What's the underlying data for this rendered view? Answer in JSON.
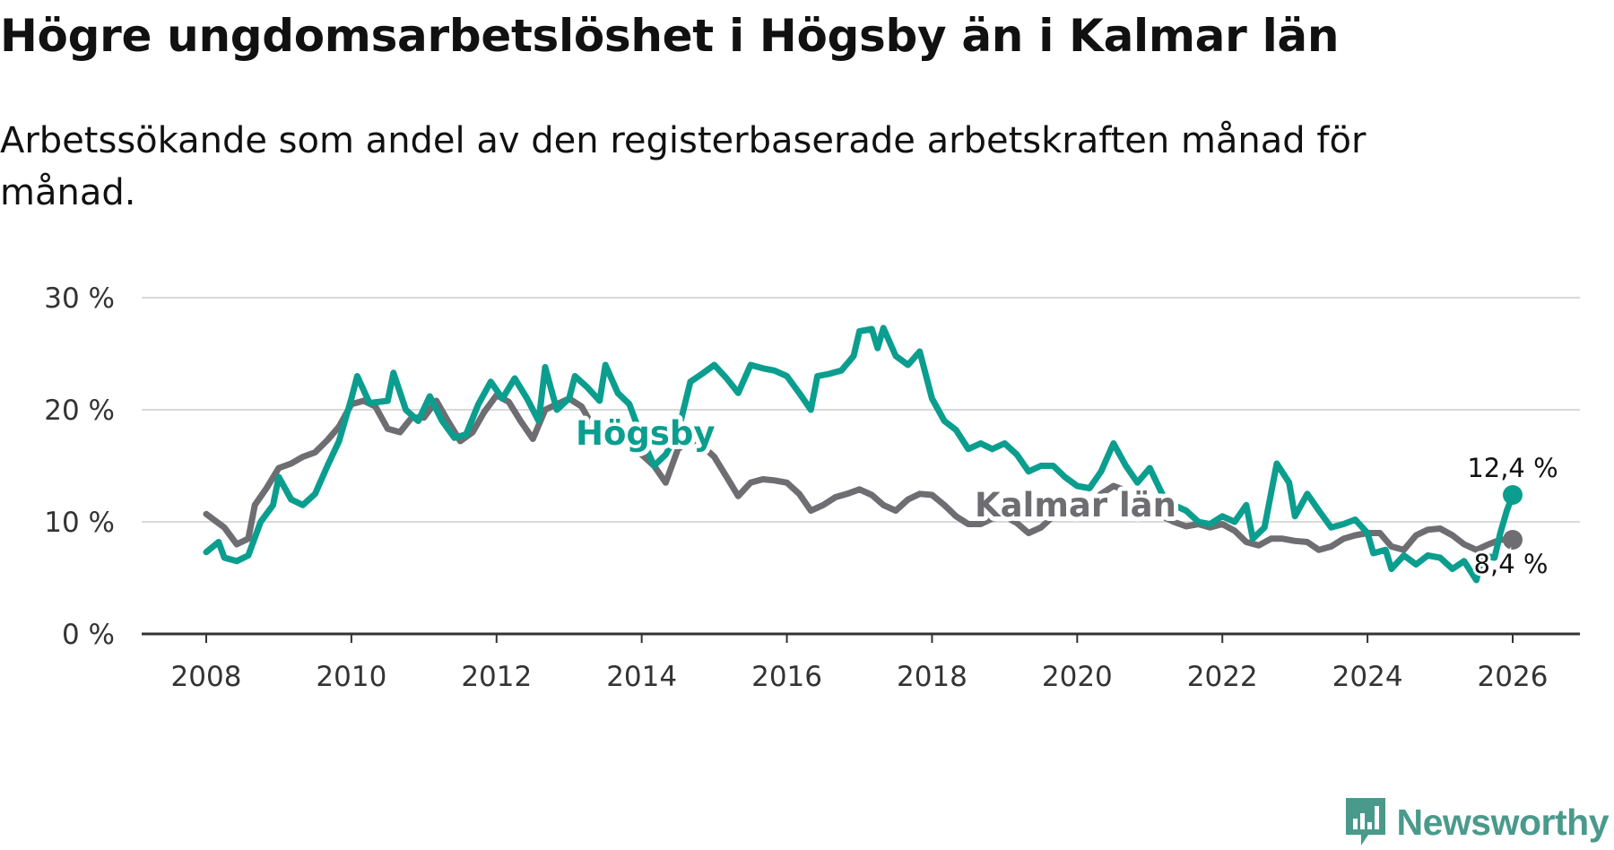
{
  "chart_data": {
    "type": "line",
    "title": "Högre ungdomsarbetslöshet i Högsby än i Kalmar län",
    "subtitle": "Arbetssökande som andel av den registerbaserade arbetskraften månad för månad.",
    "xlabel": "",
    "ylabel": "",
    "xlim": [
      2008,
      2026
    ],
    "ylim": [
      0,
      30
    ],
    "x_ticks": [
      "2008",
      "2010",
      "2012",
      "2014",
      "2016",
      "2018",
      "2020",
      "2022",
      "2024",
      "2026"
    ],
    "y_ticks": [
      "0 %",
      "10 %",
      "20 %",
      "30 %"
    ],
    "grid": true,
    "series": [
      {
        "name": "Kalmar län",
        "label": "Kalmar län",
        "color": "#6e6d72",
        "end_label": "8,4 %",
        "points": [
          [
            2008.0,
            10.7
          ],
          [
            2008.25,
            9.5
          ],
          [
            2008.42,
            8.0
          ],
          [
            2008.58,
            8.5
          ],
          [
            2008.67,
            11.5
          ],
          [
            2008.83,
            13.0
          ],
          [
            2009.0,
            14.8
          ],
          [
            2009.17,
            15.2
          ],
          [
            2009.33,
            15.8
          ],
          [
            2009.5,
            16.2
          ],
          [
            2009.67,
            17.3
          ],
          [
            2009.83,
            18.5
          ],
          [
            2010.0,
            20.5
          ],
          [
            2010.17,
            20.8
          ],
          [
            2010.33,
            20.3
          ],
          [
            2010.5,
            18.3
          ],
          [
            2010.67,
            18.0
          ],
          [
            2010.83,
            19.3
          ],
          [
            2011.0,
            19.3
          ],
          [
            2011.17,
            20.8
          ],
          [
            2011.33,
            19.0
          ],
          [
            2011.5,
            17.2
          ],
          [
            2011.67,
            18.0
          ],
          [
            2011.83,
            19.8
          ],
          [
            2012.0,
            21.3
          ],
          [
            2012.17,
            20.7
          ],
          [
            2012.33,
            19.0
          ],
          [
            2012.5,
            17.4
          ],
          [
            2012.67,
            20.0
          ],
          [
            2012.83,
            20.5
          ],
          [
            2013.0,
            21.0
          ],
          [
            2013.17,
            20.3
          ],
          [
            2013.33,
            18.5
          ],
          [
            2013.5,
            17.0
          ],
          [
            2013.67,
            17.8
          ],
          [
            2013.83,
            17.2
          ],
          [
            2014.0,
            16.0
          ],
          [
            2014.17,
            15.0
          ],
          [
            2014.33,
            13.5
          ],
          [
            2014.5,
            16.5
          ],
          [
            2014.67,
            17.2
          ],
          [
            2014.83,
            16.8
          ],
          [
            2015.0,
            15.8
          ],
          [
            2015.17,
            14.0
          ],
          [
            2015.33,
            12.3
          ],
          [
            2015.5,
            13.5
          ],
          [
            2015.67,
            13.8
          ],
          [
            2015.83,
            13.7
          ],
          [
            2016.0,
            13.5
          ],
          [
            2016.17,
            12.5
          ],
          [
            2016.33,
            11.0
          ],
          [
            2016.5,
            11.5
          ],
          [
            2016.67,
            12.2
          ],
          [
            2016.83,
            12.5
          ],
          [
            2017.0,
            12.9
          ],
          [
            2017.17,
            12.4
          ],
          [
            2017.33,
            11.5
          ],
          [
            2017.5,
            11.0
          ],
          [
            2017.67,
            12.0
          ],
          [
            2017.83,
            12.5
          ],
          [
            2018.0,
            12.4
          ],
          [
            2018.17,
            11.5
          ],
          [
            2018.33,
            10.5
          ],
          [
            2018.5,
            9.8
          ],
          [
            2018.67,
            9.8
          ],
          [
            2018.83,
            10.3
          ],
          [
            2019.0,
            10.5
          ],
          [
            2019.17,
            9.9
          ],
          [
            2019.33,
            9.0
          ],
          [
            2019.5,
            9.5
          ],
          [
            2019.67,
            10.5
          ],
          [
            2019.83,
            10.5
          ],
          [
            2020.0,
            10.9
          ],
          [
            2020.17,
            11.5
          ],
          [
            2020.33,
            12.5
          ],
          [
            2020.5,
            13.2
          ],
          [
            2020.67,
            12.8
          ],
          [
            2020.83,
            12.0
          ],
          [
            2021.0,
            11.2
          ],
          [
            2021.17,
            10.5
          ],
          [
            2021.33,
            10.0
          ],
          [
            2021.5,
            9.6
          ],
          [
            2021.67,
            9.8
          ],
          [
            2021.83,
            9.5
          ],
          [
            2022.0,
            9.8
          ],
          [
            2022.17,
            9.2
          ],
          [
            2022.33,
            8.2
          ],
          [
            2022.5,
            7.9
          ],
          [
            2022.67,
            8.5
          ],
          [
            2022.83,
            8.5
          ],
          [
            2023.0,
            8.3
          ],
          [
            2023.17,
            8.2
          ],
          [
            2023.33,
            7.5
          ],
          [
            2023.5,
            7.8
          ],
          [
            2023.67,
            8.5
          ],
          [
            2023.83,
            8.8
          ],
          [
            2024.0,
            9.0
          ],
          [
            2024.17,
            9.0
          ],
          [
            2024.33,
            7.8
          ],
          [
            2024.5,
            7.5
          ],
          [
            2024.67,
            8.8
          ],
          [
            2024.83,
            9.3
          ],
          [
            2025.0,
            9.4
          ],
          [
            2025.17,
            8.8
          ],
          [
            2025.33,
            8.0
          ],
          [
            2025.5,
            7.5
          ],
          [
            2025.67,
            8.0
          ],
          [
            2025.83,
            8.4
          ],
          [
            2026.0,
            8.4
          ]
        ]
      },
      {
        "name": "Högsby",
        "label": "Högsby",
        "color": "#0b9e8f",
        "end_label": "12,4 %",
        "points": [
          [
            2008.0,
            7.3
          ],
          [
            2008.17,
            8.2
          ],
          [
            2008.25,
            6.8
          ],
          [
            2008.42,
            6.5
          ],
          [
            2008.58,
            7.0
          ],
          [
            2008.75,
            10.0
          ],
          [
            2008.92,
            11.5
          ],
          [
            2009.0,
            14.0
          ],
          [
            2009.17,
            12.0
          ],
          [
            2009.33,
            11.5
          ],
          [
            2009.5,
            12.5
          ],
          [
            2009.67,
            15.0
          ],
          [
            2009.83,
            17.2
          ],
          [
            2010.0,
            21.0
          ],
          [
            2010.08,
            23.0
          ],
          [
            2010.25,
            20.6
          ],
          [
            2010.5,
            20.8
          ],
          [
            2010.58,
            23.3
          ],
          [
            2010.75,
            20.0
          ],
          [
            2010.92,
            19.0
          ],
          [
            2011.08,
            21.2
          ],
          [
            2011.25,
            19.0
          ],
          [
            2011.42,
            17.5
          ],
          [
            2011.58,
            17.8
          ],
          [
            2011.75,
            20.5
          ],
          [
            2011.92,
            22.5
          ],
          [
            2012.08,
            21.0
          ],
          [
            2012.25,
            22.8
          ],
          [
            2012.42,
            21.0
          ],
          [
            2012.58,
            19.0
          ],
          [
            2012.67,
            23.8
          ],
          [
            2012.83,
            20.0
          ],
          [
            2013.0,
            21.0
          ],
          [
            2013.08,
            23.0
          ],
          [
            2013.25,
            22.0
          ],
          [
            2013.42,
            20.8
          ],
          [
            2013.5,
            24.0
          ],
          [
            2013.67,
            21.5
          ],
          [
            2013.83,
            20.5
          ],
          [
            2014.0,
            17.5
          ],
          [
            2014.17,
            15.0
          ],
          [
            2014.33,
            16.0
          ],
          [
            2014.5,
            18.0
          ],
          [
            2014.67,
            22.5
          ],
          [
            2014.83,
            23.2
          ],
          [
            2015.0,
            24.0
          ],
          [
            2015.17,
            22.8
          ],
          [
            2015.33,
            21.5
          ],
          [
            2015.5,
            24.0
          ],
          [
            2015.67,
            23.7
          ],
          [
            2015.83,
            23.5
          ],
          [
            2016.0,
            23.0
          ],
          [
            2016.17,
            21.5
          ],
          [
            2016.33,
            20.0
          ],
          [
            2016.42,
            23.0
          ],
          [
            2016.58,
            23.2
          ],
          [
            2016.75,
            23.5
          ],
          [
            2016.92,
            24.8
          ],
          [
            2017.0,
            27.0
          ],
          [
            2017.17,
            27.2
          ],
          [
            2017.25,
            25.5
          ],
          [
            2017.33,
            27.3
          ],
          [
            2017.5,
            24.8
          ],
          [
            2017.67,
            24.0
          ],
          [
            2017.83,
            25.2
          ],
          [
            2018.0,
            21.0
          ],
          [
            2018.17,
            19.0
          ],
          [
            2018.33,
            18.2
          ],
          [
            2018.5,
            16.5
          ],
          [
            2018.67,
            17.0
          ],
          [
            2018.83,
            16.5
          ],
          [
            2019.0,
            17.0
          ],
          [
            2019.17,
            16.0
          ],
          [
            2019.33,
            14.5
          ],
          [
            2019.5,
            15.0
          ],
          [
            2019.67,
            15.0
          ],
          [
            2019.83,
            14.0
          ],
          [
            2020.0,
            13.2
          ],
          [
            2020.17,
            13.0
          ],
          [
            2020.33,
            14.5
          ],
          [
            2020.5,
            17.0
          ],
          [
            2020.67,
            15.0
          ],
          [
            2020.83,
            13.5
          ],
          [
            2021.0,
            14.8
          ],
          [
            2021.17,
            12.5
          ],
          [
            2021.33,
            11.5
          ],
          [
            2021.5,
            11.0
          ],
          [
            2021.67,
            10.0
          ],
          [
            2021.83,
            9.8
          ],
          [
            2022.0,
            10.5
          ],
          [
            2022.17,
            10.0
          ],
          [
            2022.33,
            11.5
          ],
          [
            2022.42,
            8.5
          ],
          [
            2022.58,
            9.5
          ],
          [
            2022.75,
            15.2
          ],
          [
            2022.92,
            13.5
          ],
          [
            2023.0,
            10.5
          ],
          [
            2023.17,
            12.5
          ],
          [
            2023.33,
            11.0
          ],
          [
            2023.5,
            9.5
          ],
          [
            2023.67,
            9.8
          ],
          [
            2023.83,
            10.2
          ],
          [
            2024.0,
            9.0
          ],
          [
            2024.08,
            7.2
          ],
          [
            2024.25,
            7.5
          ],
          [
            2024.33,
            5.8
          ],
          [
            2024.5,
            7.0
          ],
          [
            2024.67,
            6.2
          ],
          [
            2024.83,
            7.0
          ],
          [
            2025.0,
            6.8
          ],
          [
            2025.17,
            5.8
          ],
          [
            2025.33,
            6.5
          ],
          [
            2025.5,
            4.8
          ],
          [
            2025.58,
            7.0
          ],
          [
            2025.75,
            6.8
          ],
          [
            2025.83,
            9.0
          ],
          [
            2025.92,
            11.0
          ],
          [
            2026.0,
            12.4
          ]
        ]
      }
    ]
  },
  "brand": {
    "name": "Newsworthy",
    "icon": "newsworthy-logo-icon",
    "color": "#4a9a8c"
  }
}
